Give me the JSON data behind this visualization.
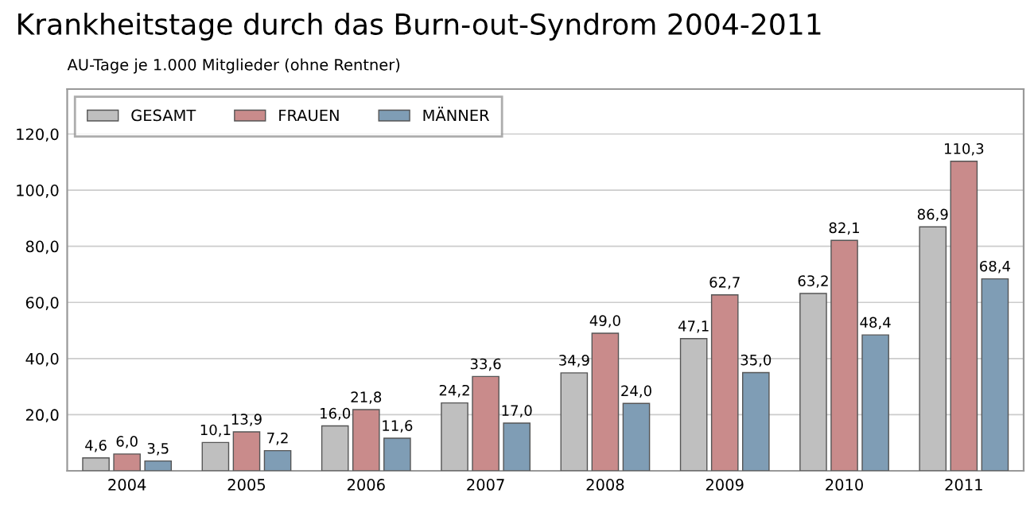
{
  "chart_data": {
    "type": "bar",
    "title": "Krankheitstage durch das Burn-out-Syndrom 2004-2011",
    "subtitle": "AU-Tage je 1.000 Mitglieder (ohne Rentner)",
    "categories": [
      "2004",
      "2005",
      "2006",
      "2007",
      "2008",
      "2009",
      "2010",
      "2011"
    ],
    "series": [
      {
        "name": "GESAMT",
        "color": "#bfbfbf",
        "values": [
          4.6,
          10.1,
          16.0,
          24.2,
          34.9,
          47.1,
          63.2,
          86.9
        ],
        "value_labels": [
          "4,6",
          "10,1",
          "16,0",
          "24,2",
          "34,9",
          "47,1",
          "63,2",
          "86,9"
        ]
      },
      {
        "name": "FRAUEN",
        "color": "#c98b8b",
        "values": [
          6.0,
          13.9,
          21.8,
          33.6,
          49.0,
          62.7,
          82.1,
          110.3
        ],
        "value_labels": [
          "6,0",
          "13,9",
          "21,8",
          "33,6",
          "49,0",
          "62,7",
          "82,1",
          "110,3"
        ]
      },
      {
        "name": "MÄNNER",
        "color": "#7f9db5",
        "values": [
          3.5,
          7.2,
          11.6,
          17.0,
          24.0,
          35.0,
          48.4,
          68.4
        ],
        "value_labels": [
          "3,5",
          "7,2",
          "11,6",
          "17,0",
          "24,0",
          "35,0",
          "48,4",
          "68,4"
        ]
      }
    ],
    "ylim": [
      0,
      136
    ],
    "yticks": [
      {
        "value": 20,
        "label": "20,0"
      },
      {
        "value": 40,
        "label": "40,0"
      },
      {
        "value": 60,
        "label": "60,0"
      },
      {
        "value": 80,
        "label": "80,0"
      },
      {
        "value": 100,
        "label": "100,0"
      },
      {
        "value": 120,
        "label": "120,0"
      }
    ],
    "grid": "y",
    "legend": "top left"
  }
}
